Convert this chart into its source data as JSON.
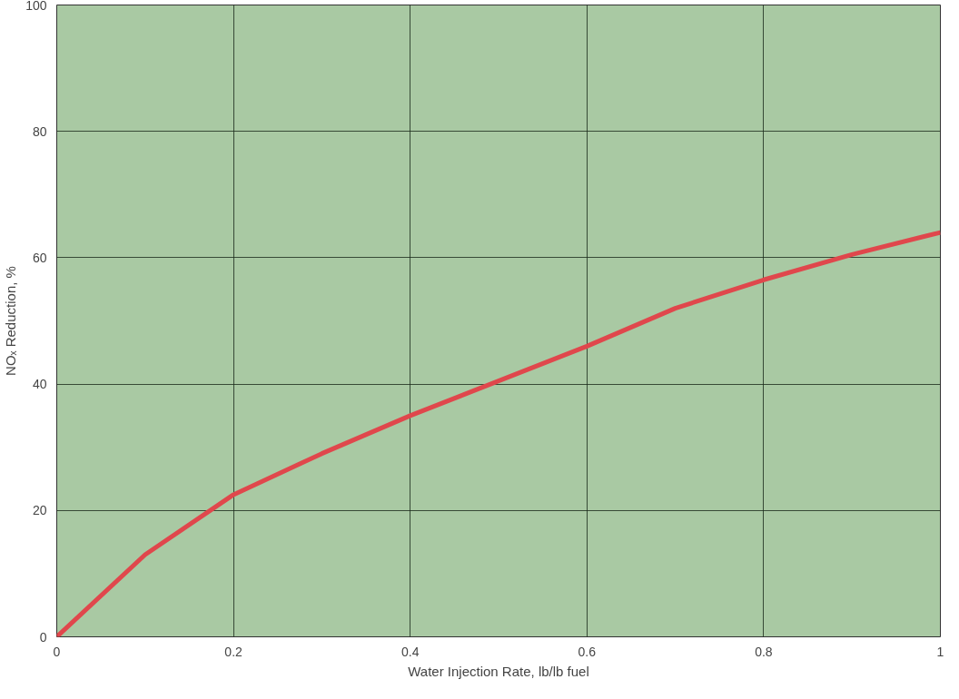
{
  "chart_data": {
    "type": "line",
    "xlabel": "Water Injection Rate, lb/lb fuel",
    "ylabel": "NOₓ Reduction, %",
    "x": [
      0,
      0.1,
      0.2,
      0.3,
      0.4,
      0.5,
      0.6,
      0.7,
      0.8,
      0.9,
      1
    ],
    "series": [
      {
        "color": "#e0474c",
        "values": [
          0,
          13,
          22.5,
          29,
          35,
          40.5,
          46,
          52,
          56.5,
          60.5,
          64
        ]
      }
    ],
    "xlim": [
      0,
      1
    ],
    "ylim": [
      0,
      100
    ],
    "xticks": [
      0,
      0.2,
      0.4,
      0.6,
      0.8,
      1
    ],
    "yticks": [
      0,
      20,
      40,
      60,
      80,
      100
    ],
    "grid": true,
    "marker": "none",
    "line_style": "solid"
  }
}
